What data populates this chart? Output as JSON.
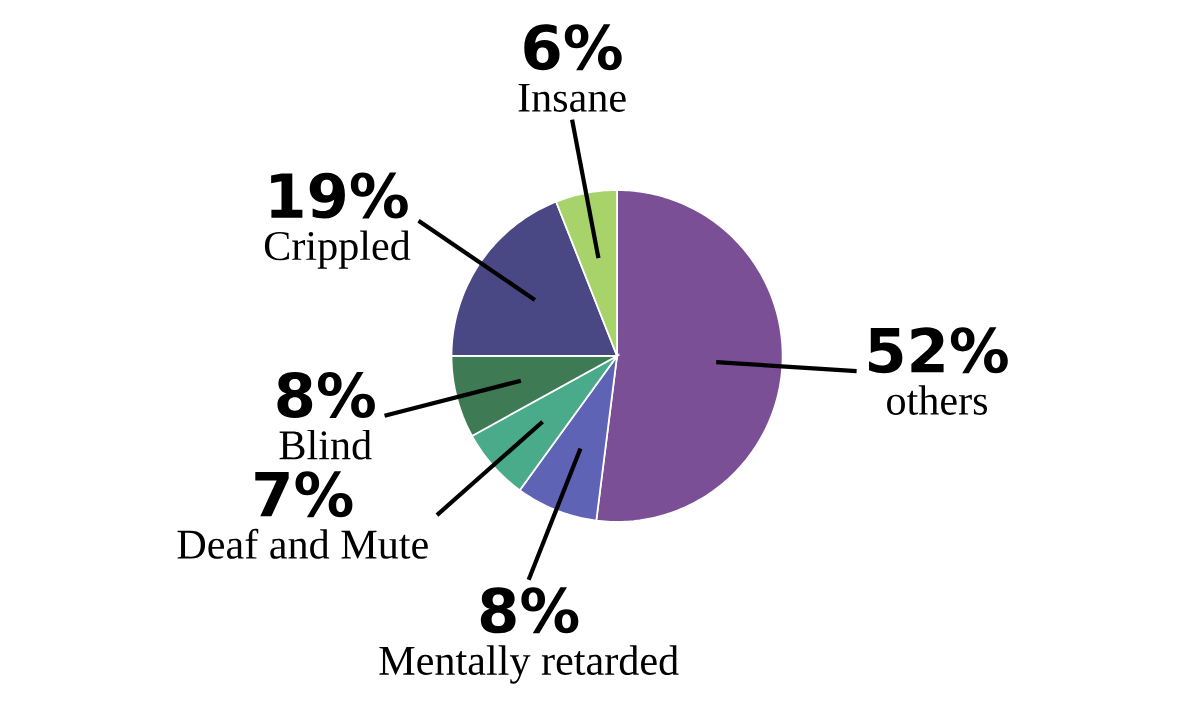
{
  "chart_data": {
    "type": "pie",
    "categories": [
      "others",
      "Mentally retarded",
      "Deaf and Mute",
      "Blind",
      "Crippled",
      "Insane"
    ],
    "values": [
      52,
      8,
      7,
      8,
      19,
      6
    ],
    "value_labels": [
      "52%",
      "8%",
      "7%",
      "8%",
      "19%",
      "6%"
    ],
    "colors": [
      "#7a4f96",
      "#5e63b5",
      "#4aab8a",
      "#3e7b55",
      "#4a4785",
      "#a7d36a"
    ]
  }
}
